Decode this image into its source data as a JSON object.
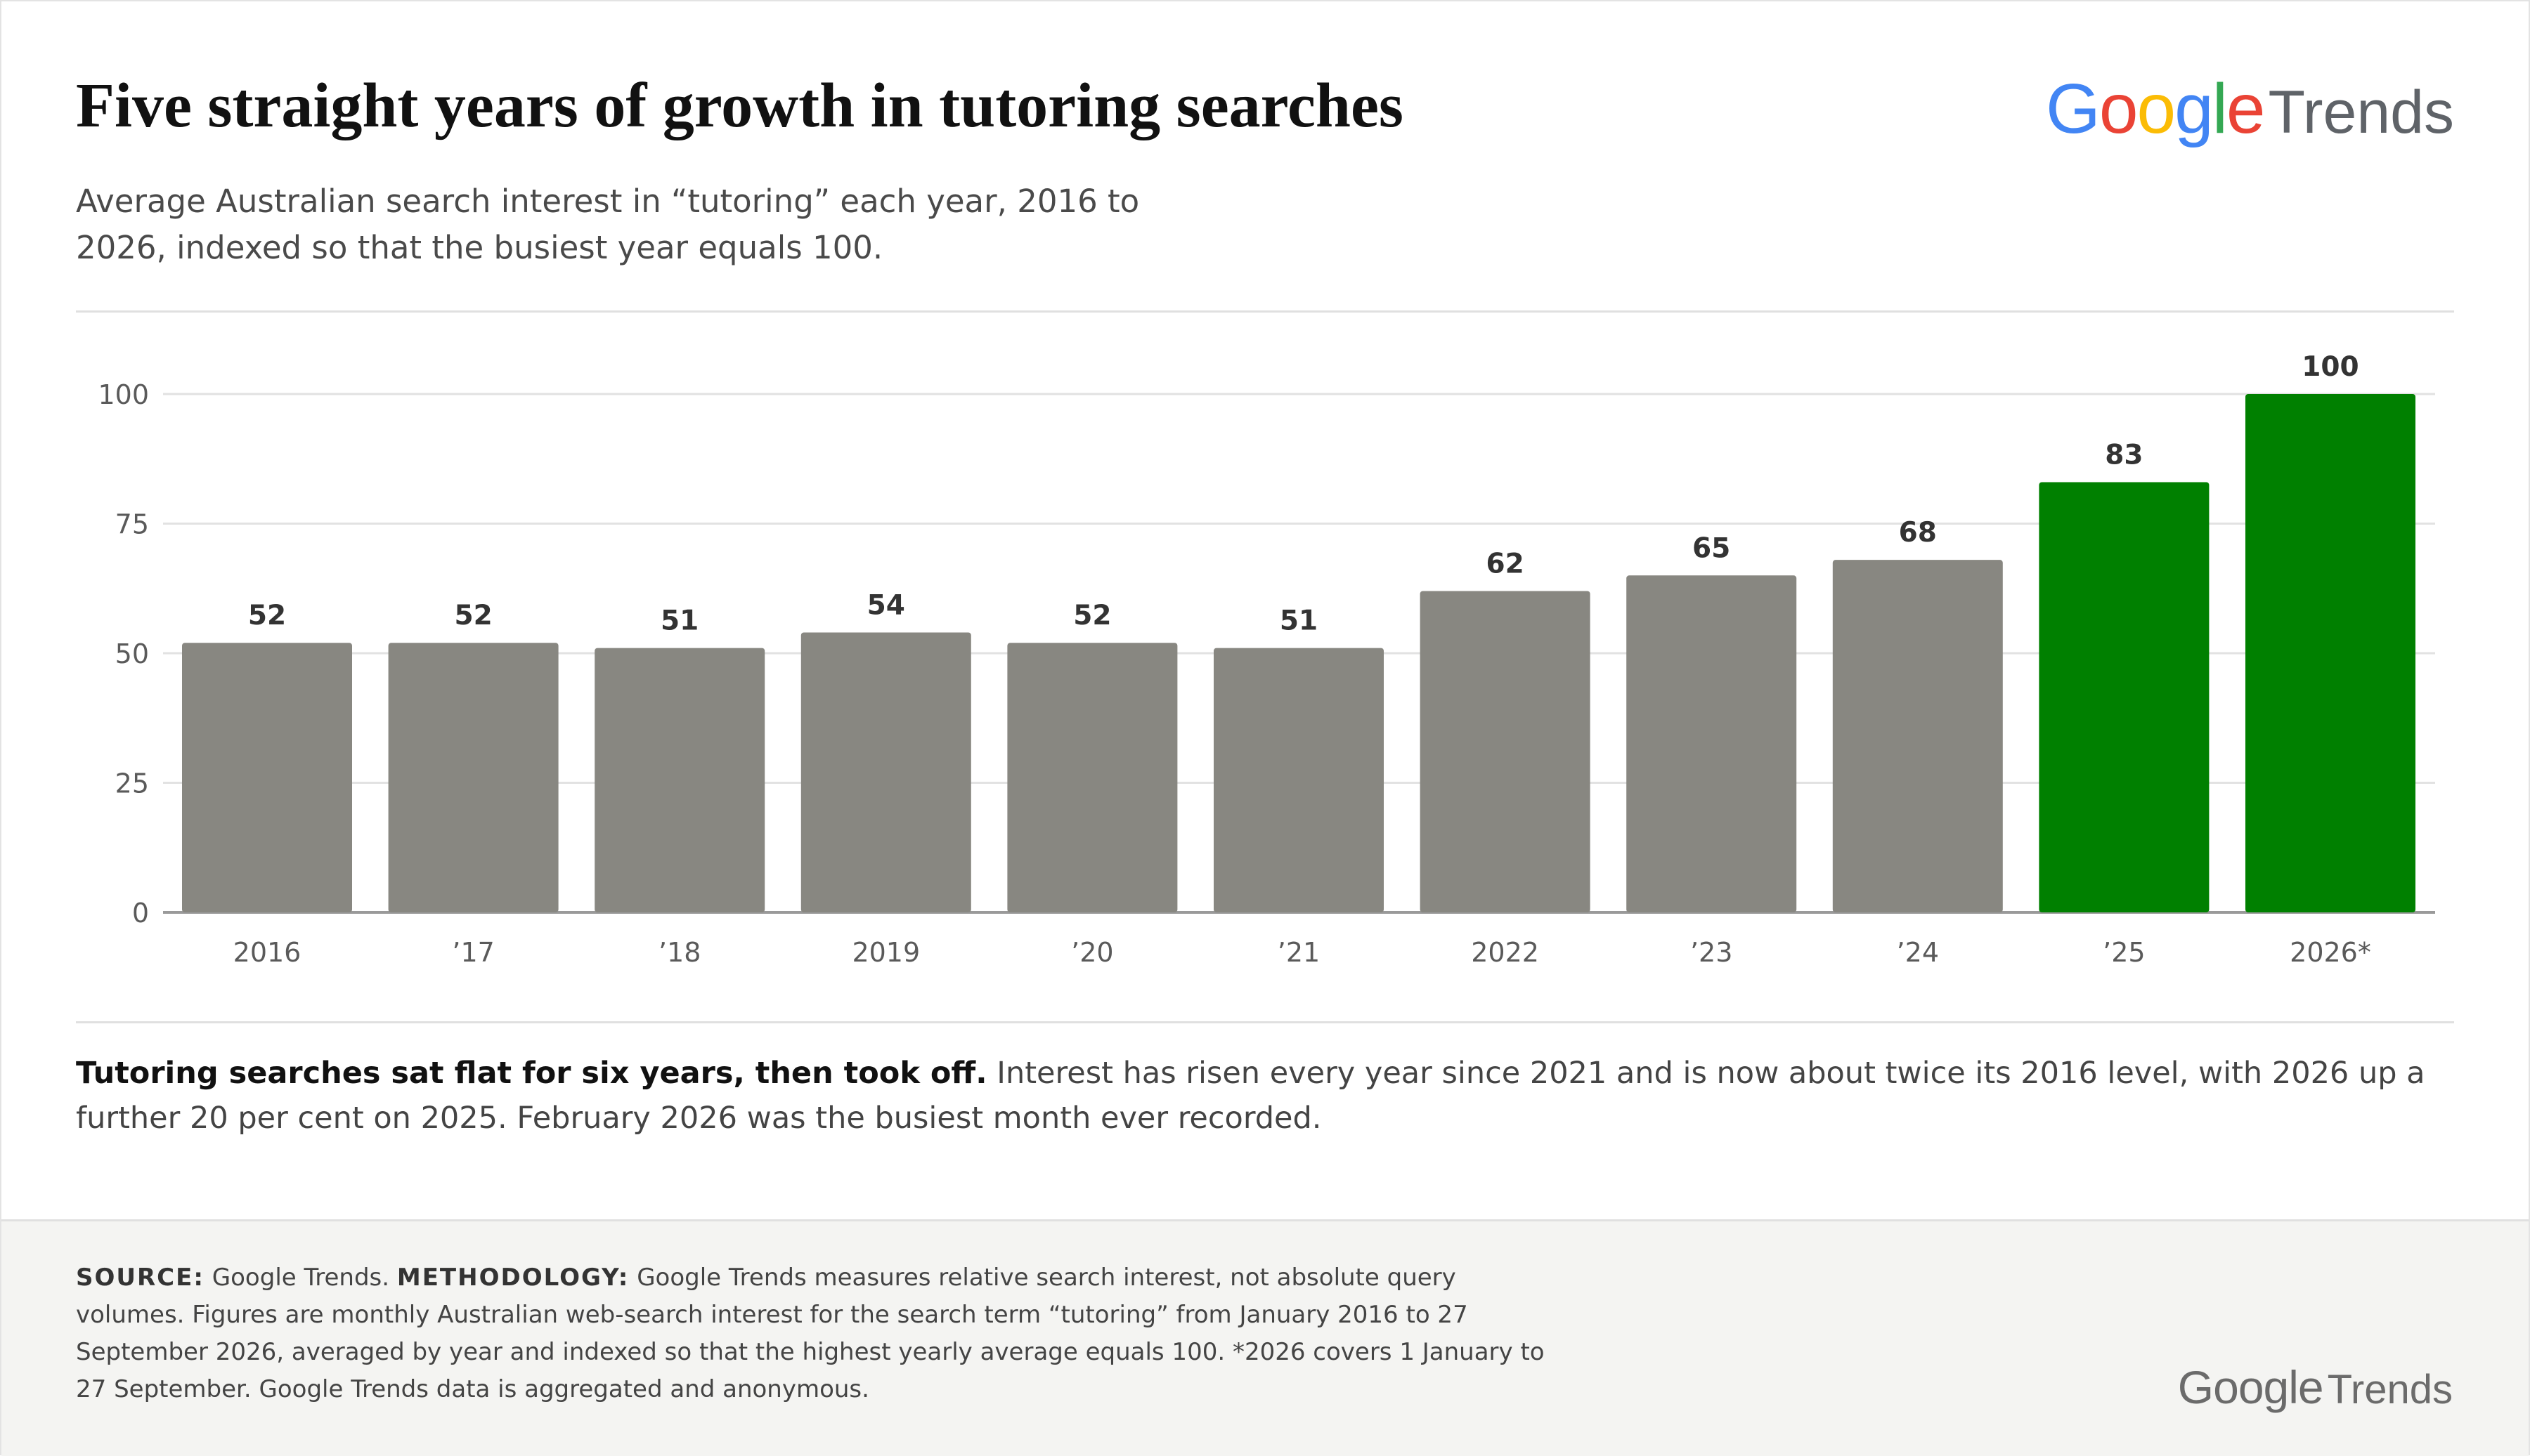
{
  "header": {
    "title": "Five straight years of growth in tutoring searches",
    "subtitle": "Average Australian search interest in “tutoring” each year, 2016 to 2026, indexed so that the busiest year equals 100.",
    "logo_google": "Google",
    "logo_trends": "Trends"
  },
  "brand_colors": {
    "g_blue": "#4285F4",
    "g_red": "#EA4335",
    "g_yellow": "#FBBC05",
    "g_green": "#34A853"
  },
  "chart_data": {
    "type": "bar",
    "title": "",
    "xlabel": "",
    "ylabel": "",
    "categories": [
      "2016",
      "’17",
      "’18",
      "2019",
      "’20",
      "’21",
      "2022",
      "’23",
      "’24",
      "’25",
      "2026*"
    ],
    "values": [
      52,
      52,
      51,
      54,
      52,
      51,
      62,
      65,
      68,
      83,
      100
    ],
    "ylim": [
      0,
      100
    ],
    "yticks": [
      0,
      25,
      50,
      75,
      100
    ],
    "grid": true,
    "legend": "none",
    "colors": {
      "default": "#888781",
      "highlight": "#008000",
      "highlight_categories": [
        "’25",
        "2026*"
      ]
    }
  },
  "takeaway": {
    "lead": "Tutoring searches sat flat for six years, then took off.",
    "body": "Interest has risen every year since 2021 and is now about twice its 2016 level, with 2026 up a further 20 per cent on 2025. February 2026 was the busiest month ever recorded."
  },
  "footer": {
    "source_label": "SOURCE:",
    "source_text": "Google Trends.",
    "methodology_label": "METHODOLOGY:",
    "methodology_text": "Google Trends measures relative search interest, not absolute query volumes. Figures are monthly Australian web-search interest for the search term “tutoring” from January 2016 to 27 September 2026, averaged by year and indexed so that the highest yearly average equals 100. *2026 covers 1 January to 27 September. Google Trends data is aggregated and anonymous.",
    "logo_google": "Google",
    "logo_trends": "Trends"
  }
}
